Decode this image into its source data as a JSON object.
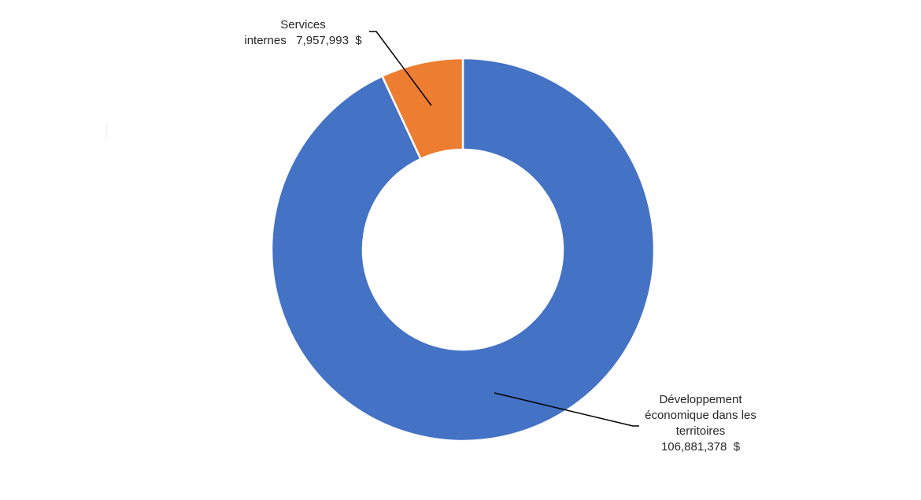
{
  "chart_data": {
    "type": "pie",
    "variant": "donut",
    "title": "",
    "categories": [
      "Développement économique dans les territoires",
      "Services internes"
    ],
    "values": [
      106881378,
      7957993
    ],
    "colors": [
      "#4472C4",
      "#ED7D31"
    ],
    "units": "$",
    "legend": "none",
    "data_labels": [
      {
        "lines": [
          "Développement",
          "économique dans les",
          "territoires",
          "106,881,378  $"
        ]
      },
      {
        "lines": [
          "Services",
          "internes   7,957,993  $"
        ]
      }
    ]
  }
}
